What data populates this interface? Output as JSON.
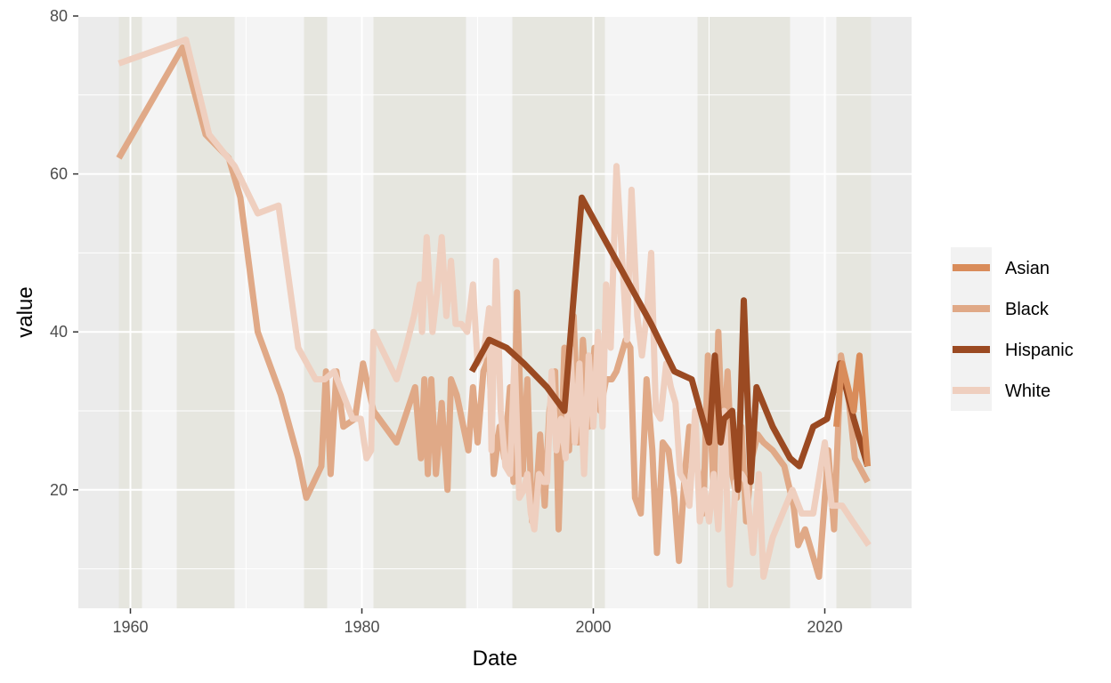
{
  "chart_data": {
    "type": "line",
    "title": "",
    "xlabel": "Date",
    "ylabel": "value",
    "xlim": [
      1955.5,
      2027.5
    ],
    "ylim": [
      5,
      80
    ],
    "x_ticks": [
      1960,
      1980,
      2000,
      2020
    ],
    "x_tick_labels": [
      "1960",
      "1980",
      "2000",
      "2020"
    ],
    "y_ticks": [
      20,
      40,
      60,
      80
    ],
    "y_tick_labels": [
      "20",
      "40",
      "60",
      "80"
    ],
    "grid": true,
    "legend_position": "right",
    "background_bands": [
      {
        "start": 1959,
        "end": 1961
      },
      {
        "start": 1964,
        "end": 1969
      },
      {
        "start": 1975,
        "end": 1977
      },
      {
        "start": 1981,
        "end": 1989
      },
      {
        "start": 1993,
        "end": 2001
      },
      {
        "start": 2009,
        "end": 2017
      },
      {
        "start": 2021,
        "end": 2024
      }
    ],
    "series": [
      {
        "name": "Asian",
        "color": "#D98C5A",
        "points": [
          [
            2021.0,
            28
          ],
          [
            2021.5,
            36
          ],
          [
            2022.5,
            30
          ],
          [
            2023.0,
            37
          ],
          [
            2023.7,
            23
          ]
        ]
      },
      {
        "name": "Black",
        "color": "#E0A987",
        "points": [
          [
            1959,
            62
          ],
          [
            1964.5,
            76
          ],
          [
            1966.5,
            65
          ],
          [
            1968.5,
            62
          ],
          [
            1969.5,
            57
          ],
          [
            1971.0,
            40
          ],
          [
            1973.0,
            32
          ],
          [
            1974.5,
            24
          ],
          [
            1975.2,
            19
          ],
          [
            1976.5,
            23
          ],
          [
            1976.9,
            35
          ],
          [
            1977.3,
            22
          ],
          [
            1977.8,
            35
          ],
          [
            1978.4,
            28
          ],
          [
            1979.4,
            29
          ],
          [
            1980.1,
            36
          ],
          [
            1981.0,
            30
          ],
          [
            1983.0,
            26
          ],
          [
            1984.6,
            33
          ],
          [
            1985.1,
            24
          ],
          [
            1985.4,
            34
          ],
          [
            1985.7,
            22
          ],
          [
            1986.0,
            34
          ],
          [
            1986.4,
            22
          ],
          [
            1986.9,
            31
          ],
          [
            1987.4,
            20
          ],
          [
            1987.7,
            34
          ],
          [
            1988.2,
            32
          ],
          [
            1989.2,
            25
          ],
          [
            1989.6,
            33
          ],
          [
            1990.0,
            26
          ],
          [
            1990.5,
            35
          ],
          [
            1991.0,
            37
          ],
          [
            1991.4,
            22
          ],
          [
            1991.9,
            28
          ],
          [
            1992.3,
            24
          ],
          [
            1992.8,
            33
          ],
          [
            1993.1,
            21
          ],
          [
            1993.4,
            45
          ],
          [
            1993.9,
            22
          ],
          [
            1994.3,
            34
          ],
          [
            1994.7,
            16
          ],
          [
            1995.1,
            20
          ],
          [
            1995.4,
            27
          ],
          [
            1995.8,
            18
          ],
          [
            1996.2,
            30
          ],
          [
            1996.7,
            35
          ],
          [
            1997.0,
            15
          ],
          [
            1997.5,
            38
          ],
          [
            1997.9,
            25
          ],
          [
            1998.3,
            42
          ],
          [
            1998.7,
            26
          ],
          [
            1999.1,
            39
          ],
          [
            1999.6,
            28
          ],
          [
            2000.1,
            38
          ],
          [
            2000.6,
            30
          ],
          [
            2001.1,
            34
          ],
          [
            2001.6,
            34
          ],
          [
            2002.0,
            35
          ],
          [
            2002.8,
            39
          ],
          [
            2003.2,
            38
          ],
          [
            2003.6,
            19
          ],
          [
            2004.1,
            17
          ],
          [
            2004.6,
            34
          ],
          [
            2005.1,
            25
          ],
          [
            2005.5,
            12
          ],
          [
            2006.0,
            26
          ],
          [
            2006.5,
            25
          ],
          [
            2007.0,
            19
          ],
          [
            2007.4,
            11
          ],
          [
            2007.9,
            22
          ],
          [
            2008.3,
            28
          ],
          [
            2008.8,
            24
          ],
          [
            2009.1,
            22
          ],
          [
            2009.5,
            17
          ],
          [
            2009.9,
            37
          ],
          [
            2010.4,
            19
          ],
          [
            2010.8,
            40
          ],
          [
            2011.2,
            24
          ],
          [
            2011.6,
            35
          ],
          [
            2012.0,
            22
          ],
          [
            2012.4,
            19
          ],
          [
            2012.8,
            28
          ],
          [
            2013.2,
            16
          ],
          [
            2013.7,
            24
          ],
          [
            2014.2,
            27
          ],
          [
            2014.7,
            26
          ],
          [
            2015.5,
            25
          ],
          [
            2016.5,
            23
          ],
          [
            2017.3,
            18
          ],
          [
            2017.7,
            13
          ],
          [
            2018.3,
            15
          ],
          [
            2019.5,
            9
          ],
          [
            2020.3,
            25
          ],
          [
            2020.8,
            15
          ],
          [
            2021.4,
            37
          ],
          [
            2022.1,
            31
          ],
          [
            2022.6,
            24
          ],
          [
            2023.7,
            21
          ]
        ]
      },
      {
        "name": "Hispanic",
        "color": "#9B4A22",
        "points": [
          [
            1989.5,
            35
          ],
          [
            1991.0,
            39
          ],
          [
            1992.5,
            38
          ],
          [
            1994.0,
            36
          ],
          [
            1996.0,
            33
          ],
          [
            1997.5,
            30
          ],
          [
            1999.0,
            57
          ],
          [
            2000.5,
            53
          ],
          [
            2002.0,
            49
          ],
          [
            2003.5,
            45
          ],
          [
            2005.0,
            41
          ],
          [
            2007.0,
            35
          ],
          [
            2008.5,
            34
          ],
          [
            2010.0,
            26
          ],
          [
            2010.5,
            37
          ],
          [
            2011.0,
            26
          ],
          [
            2011.3,
            29
          ],
          [
            2012.0,
            30
          ],
          [
            2012.5,
            20
          ],
          [
            2013.0,
            44
          ],
          [
            2013.6,
            21
          ],
          [
            2014.1,
            33
          ],
          [
            2015.5,
            28
          ],
          [
            2017.0,
            24
          ],
          [
            2017.8,
            23
          ],
          [
            2019.0,
            28
          ],
          [
            2020.2,
            29
          ],
          [
            2021.3,
            36
          ],
          [
            2022.5,
            29
          ],
          [
            2023.7,
            23
          ]
        ]
      },
      {
        "name": "White",
        "color": "#EFCFBF",
        "points": [
          [
            1959,
            74
          ],
          [
            1964.8,
            77
          ],
          [
            1966.8,
            65
          ],
          [
            1969.0,
            61
          ],
          [
            1971.0,
            55
          ],
          [
            1972.8,
            56
          ],
          [
            1974.5,
            38
          ],
          [
            1976.0,
            34
          ],
          [
            1976.8,
            34
          ],
          [
            1977.6,
            35
          ],
          [
            1978.4,
            32
          ],
          [
            1979.2,
            29
          ],
          [
            1979.9,
            29
          ],
          [
            1980.4,
            24
          ],
          [
            1980.8,
            25
          ],
          [
            1981.0,
            40
          ],
          [
            1982.0,
            37
          ],
          [
            1983.0,
            34
          ],
          [
            1983.8,
            38
          ],
          [
            1984.5,
            42
          ],
          [
            1985.0,
            46
          ],
          [
            1985.2,
            40
          ],
          [
            1985.6,
            52
          ],
          [
            1986.1,
            40
          ],
          [
            1986.5,
            45
          ],
          [
            1986.9,
            52
          ],
          [
            1987.3,
            42
          ],
          [
            1987.7,
            49
          ],
          [
            1988.1,
            41
          ],
          [
            1988.6,
            41
          ],
          [
            1989.1,
            40
          ],
          [
            1989.6,
            46
          ],
          [
            1990.0,
            36
          ],
          [
            1990.5,
            37
          ],
          [
            1991.0,
            43
          ],
          [
            1991.2,
            25
          ],
          [
            1991.6,
            49
          ],
          [
            1992.0,
            30
          ],
          [
            1992.4,
            23
          ],
          [
            1992.8,
            22
          ],
          [
            1993.2,
            37
          ],
          [
            1993.6,
            19
          ],
          [
            1994.0,
            20
          ],
          [
            1994.3,
            22
          ],
          [
            1994.6,
            17
          ],
          [
            1994.9,
            15
          ],
          [
            1995.3,
            22
          ],
          [
            1995.7,
            21
          ],
          [
            1996.0,
            21
          ],
          [
            1996.4,
            35
          ],
          [
            1996.8,
            25
          ],
          [
            1997.2,
            29
          ],
          [
            1997.6,
            24
          ],
          [
            1998.0,
            38
          ],
          [
            1998.4,
            26
          ],
          [
            1998.8,
            36
          ],
          [
            1999.2,
            22
          ],
          [
            1999.6,
            37
          ],
          [
            2000.0,
            28
          ],
          [
            2000.4,
            40
          ],
          [
            2000.8,
            28
          ],
          [
            2001.1,
            46
          ],
          [
            2001.5,
            38
          ],
          [
            2002.0,
            61
          ],
          [
            2002.5,
            49
          ],
          [
            2002.9,
            39
          ],
          [
            2003.3,
            58
          ],
          [
            2003.8,
            42
          ],
          [
            2004.2,
            37
          ],
          [
            2004.6,
            42
          ],
          [
            2005.0,
            50
          ],
          [
            2005.4,
            30
          ],
          [
            2005.8,
            29
          ],
          [
            2006.3,
            36
          ],
          [
            2006.7,
            33
          ],
          [
            2007.1,
            31
          ],
          [
            2007.5,
            22
          ],
          [
            2007.9,
            21
          ],
          [
            2008.3,
            18
          ],
          [
            2008.8,
            30
          ],
          [
            2009.2,
            16
          ],
          [
            2009.6,
            20
          ],
          [
            2010.0,
            16
          ],
          [
            2010.4,
            22
          ],
          [
            2010.8,
            15
          ],
          [
            2011.3,
            30
          ],
          [
            2011.8,
            8
          ],
          [
            2012.3,
            21
          ],
          [
            2012.8,
            22
          ],
          [
            2013.2,
            21
          ],
          [
            2013.8,
            12
          ],
          [
            2014.3,
            22
          ],
          [
            2014.7,
            9
          ],
          [
            2015.5,
            14
          ],
          [
            2017.2,
            20
          ],
          [
            2018.0,
            17
          ],
          [
            2019.0,
            17
          ],
          [
            2020.0,
            26
          ],
          [
            2020.6,
            18
          ],
          [
            2021.5,
            18
          ],
          [
            2022.4,
            16
          ],
          [
            2023.8,
            13
          ]
        ]
      }
    ]
  }
}
